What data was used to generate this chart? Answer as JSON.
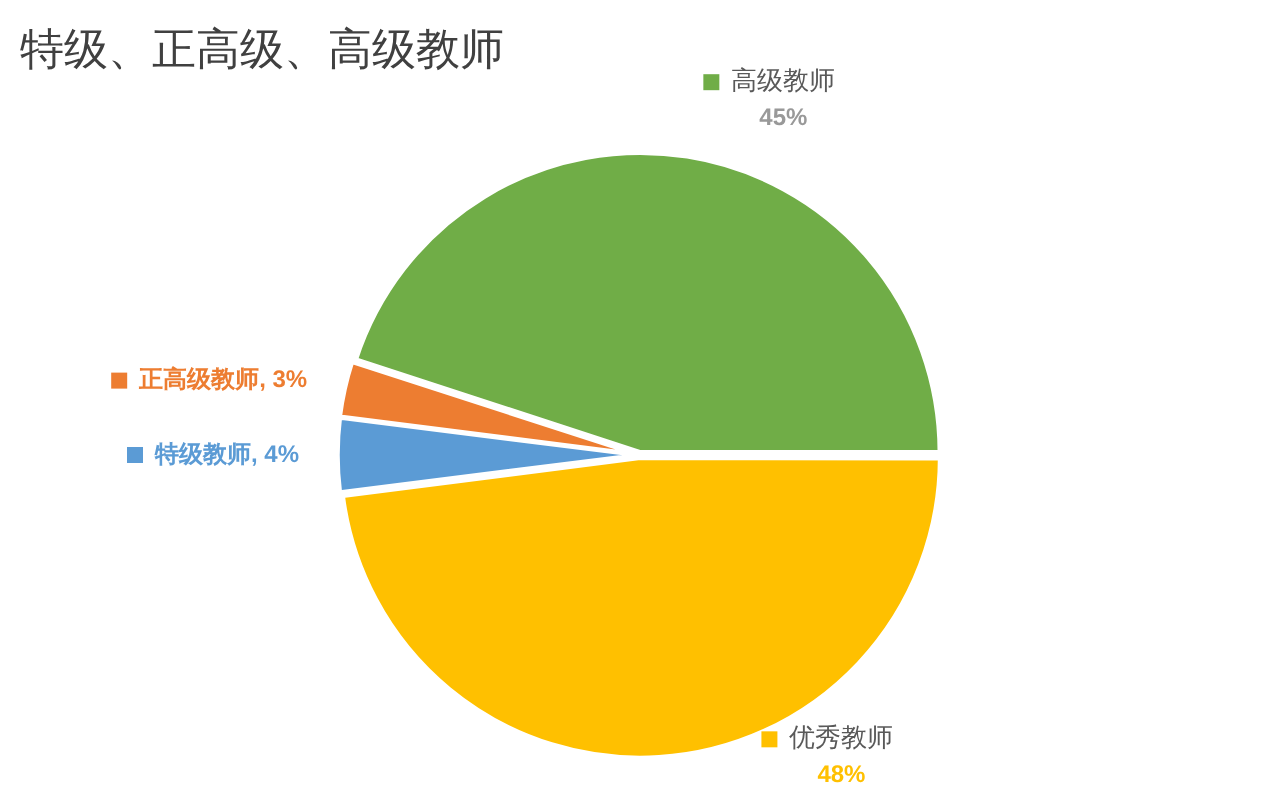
{
  "chart_data": {
    "type": "pie",
    "title": "特级、正高级、高级教师",
    "categories": [
      "优秀教师",
      "特级教师",
      "正高级教师",
      "高级教师"
    ],
    "values": [
      48,
      4,
      3,
      45
    ],
    "colors": [
      "#ffc000",
      "#5b9bd5",
      "#ed7d31",
      "#70ad47"
    ],
    "value_labels": [
      "48%",
      ", 4%",
      ", 3%",
      "45%"
    ],
    "legend": "top left"
  }
}
